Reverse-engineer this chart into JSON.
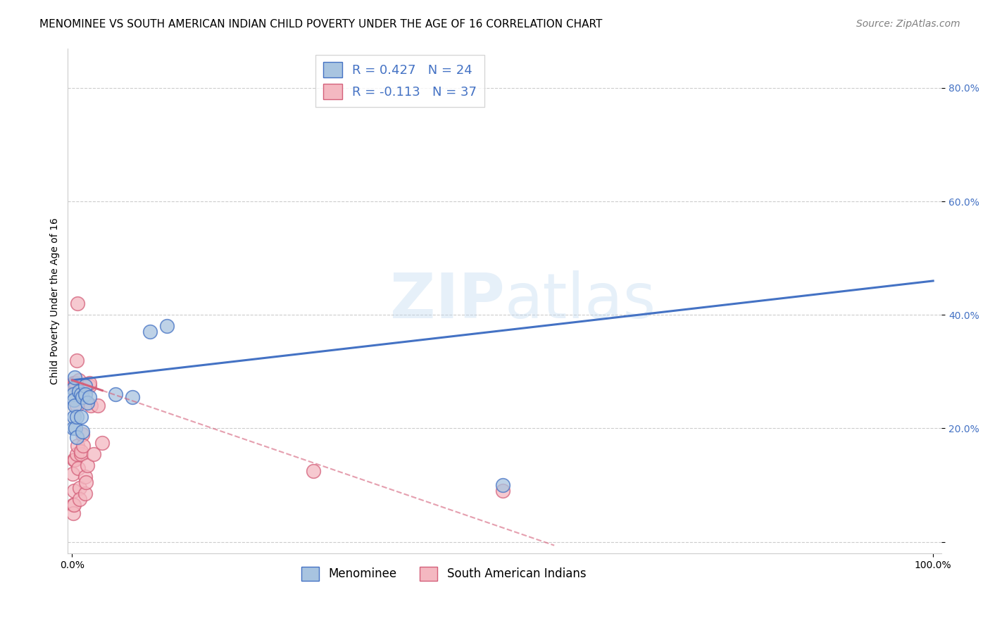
{
  "title": "MENOMINEE VS SOUTH AMERICAN INDIAN CHILD POVERTY UNDER THE AGE OF 16 CORRELATION CHART",
  "source": "Source: ZipAtlas.com",
  "ylabel": "Child Poverty Under the Age of 16",
  "menominee_R": 0.427,
  "menominee_N": 24,
  "sai_R": -0.113,
  "sai_N": 37,
  "menominee_color": "#a8c4e0",
  "menominee_line_color": "#4472c4",
  "sai_color": "#f4b8c1",
  "sai_line_color": "#d4607a",
  "background_color": "#ffffff",
  "grid_color": "#cccccc",
  "menominee_x": [
    0.001,
    0.001,
    0.001,
    0.002,
    0.002,
    0.003,
    0.003,
    0.004,
    0.005,
    0.005,
    0.008,
    0.01,
    0.01,
    0.012,
    0.012,
    0.015,
    0.015,
    0.018,
    0.02,
    0.05,
    0.07,
    0.09,
    0.11,
    0.5
  ],
  "menominee_y": [
    0.27,
    0.26,
    0.2,
    0.25,
    0.22,
    0.29,
    0.24,
    0.2,
    0.22,
    0.185,
    0.265,
    0.26,
    0.22,
    0.255,
    0.195,
    0.275,
    0.26,
    0.245,
    0.255,
    0.26,
    0.255,
    0.37,
    0.38,
    0.1
  ],
  "sai_x": [
    0.0005,
    0.001,
    0.001,
    0.001,
    0.002,
    0.002,
    0.002,
    0.003,
    0.003,
    0.003,
    0.004,
    0.004,
    0.005,
    0.005,
    0.005,
    0.006,
    0.006,
    0.007,
    0.008,
    0.009,
    0.009,
    0.01,
    0.01,
    0.012,
    0.013,
    0.015,
    0.015,
    0.016,
    0.018,
    0.02,
    0.02,
    0.022,
    0.025,
    0.03,
    0.035,
    0.28,
    0.5
  ],
  "sai_y": [
    0.12,
    0.28,
    0.065,
    0.05,
    0.145,
    0.09,
    0.065,
    0.27,
    0.145,
    0.28,
    0.275,
    0.28,
    0.32,
    0.155,
    0.24,
    0.42,
    0.17,
    0.13,
    0.285,
    0.095,
    0.075,
    0.155,
    0.16,
    0.19,
    0.17,
    0.115,
    0.085,
    0.105,
    0.135,
    0.275,
    0.28,
    0.24,
    0.155,
    0.24,
    0.175,
    0.125,
    0.09
  ],
  "legend_label_menominee": "Menominee",
  "legend_label_sai": "South American Indians",
  "title_fontsize": 11,
  "axis_label_fontsize": 10,
  "tick_fontsize": 10,
  "legend_fontsize": 13,
  "source_fontsize": 10,
  "xlim": [
    -0.005,
    1.01
  ],
  "ylim": [
    -0.02,
    0.87
  ]
}
